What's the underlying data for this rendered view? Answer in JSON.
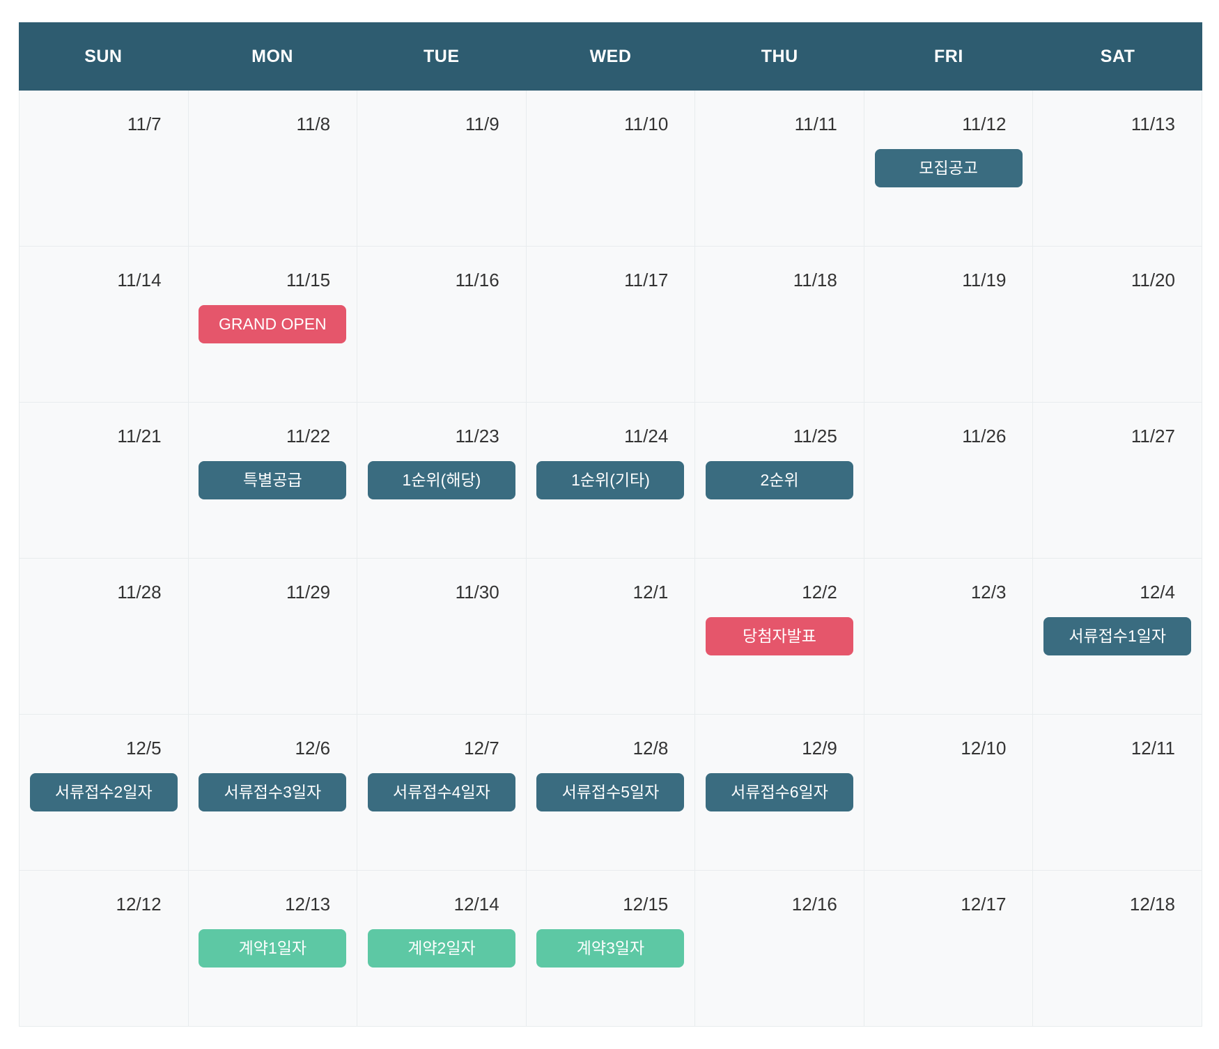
{
  "calendar": {
    "weekdays": [
      "SUN",
      "MON",
      "TUE",
      "WED",
      "THU",
      "FRI",
      "SAT"
    ],
    "colors": {
      "header_bg": "#2e5c70",
      "event_teal": "#3a6c80",
      "event_red": "#e5566b",
      "event_green": "#5dc8a4",
      "cell_bg": "#f8f9fa",
      "grid_border": "#e8ecee",
      "date_text": "#333333"
    },
    "weeks": [
      [
        {
          "date": "11/7"
        },
        {
          "date": "11/8"
        },
        {
          "date": "11/9"
        },
        {
          "date": "11/10"
        },
        {
          "date": "11/11"
        },
        {
          "date": "11/12",
          "event": {
            "label": "모집공고",
            "color": "teal"
          }
        },
        {
          "date": "11/13"
        }
      ],
      [
        {
          "date": "11/14"
        },
        {
          "date": "11/15",
          "event": {
            "label": "GRAND OPEN",
            "color": "red"
          }
        },
        {
          "date": "11/16"
        },
        {
          "date": "11/17"
        },
        {
          "date": "11/18"
        },
        {
          "date": "11/19"
        },
        {
          "date": "11/20"
        }
      ],
      [
        {
          "date": "11/21"
        },
        {
          "date": "11/22",
          "event": {
            "label": "특별공급",
            "color": "teal"
          }
        },
        {
          "date": "11/23",
          "event": {
            "label": "1순위(해당)",
            "color": "teal"
          }
        },
        {
          "date": "11/24",
          "event": {
            "label": "1순위(기타)",
            "color": "teal"
          }
        },
        {
          "date": "11/25",
          "event": {
            "label": "2순위",
            "color": "teal"
          }
        },
        {
          "date": "11/26"
        },
        {
          "date": "11/27"
        }
      ],
      [
        {
          "date": "11/28"
        },
        {
          "date": "11/29"
        },
        {
          "date": "11/30"
        },
        {
          "date": "12/1"
        },
        {
          "date": "12/2",
          "event": {
            "label": "당첨자발표",
            "color": "red"
          }
        },
        {
          "date": "12/3"
        },
        {
          "date": "12/4",
          "event": {
            "label": "서류접수1일자",
            "color": "teal"
          }
        }
      ],
      [
        {
          "date": "12/5",
          "event": {
            "label": "서류접수2일자",
            "color": "teal"
          }
        },
        {
          "date": "12/6",
          "event": {
            "label": "서류접수3일자",
            "color": "teal"
          }
        },
        {
          "date": "12/7",
          "event": {
            "label": "서류접수4일자",
            "color": "teal"
          }
        },
        {
          "date": "12/8",
          "event": {
            "label": "서류접수5일자",
            "color": "teal"
          }
        },
        {
          "date": "12/9",
          "event": {
            "label": "서류접수6일자",
            "color": "teal"
          }
        },
        {
          "date": "12/10"
        },
        {
          "date": "12/11"
        }
      ],
      [
        {
          "date": "12/12"
        },
        {
          "date": "12/13",
          "event": {
            "label": "계약1일자",
            "color": "green"
          }
        },
        {
          "date": "12/14",
          "event": {
            "label": "계약2일자",
            "color": "green"
          }
        },
        {
          "date": "12/15",
          "event": {
            "label": "계약3일자",
            "color": "green"
          }
        },
        {
          "date": "12/16"
        },
        {
          "date": "12/17"
        },
        {
          "date": "12/18"
        }
      ]
    ]
  }
}
